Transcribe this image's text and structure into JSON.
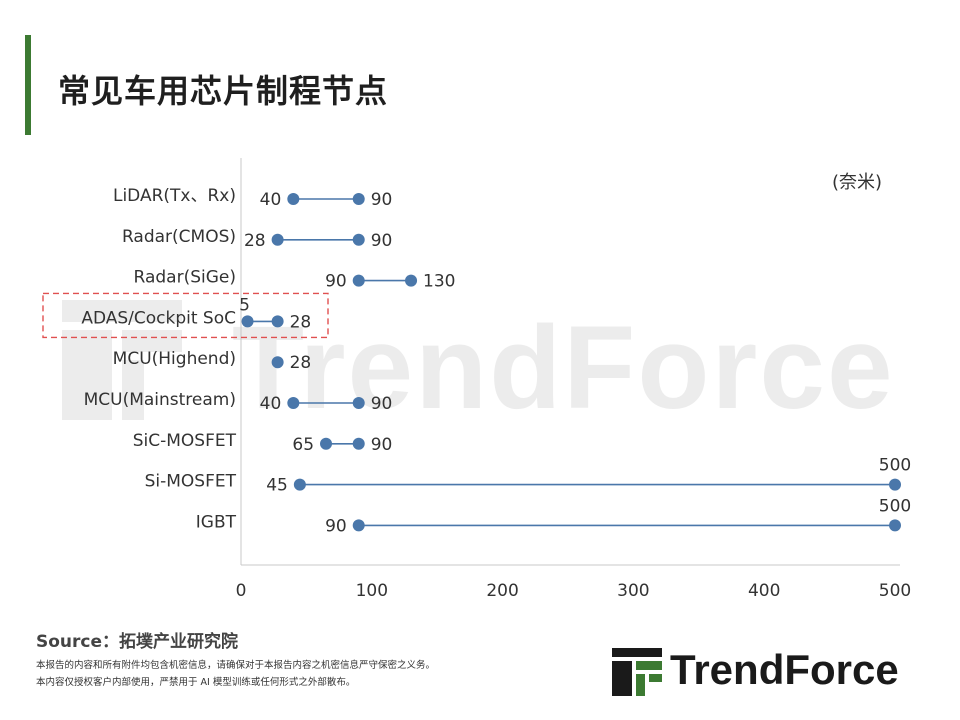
{
  "page": {
    "title": "常见车用芯片制程节点",
    "unit_label": "(奈米)",
    "source": "Source：拓墣产业研究院",
    "disclaimer_1": "本报告的内容和所有附件均包含机密信息，请确保对于本报告内容之机密信息严守保密之义务。",
    "disclaimer_2": "本内容仅授权客户内部使用，严禁用于 AI 模型训练或任何形式之外部散布。",
    "logo_text": "TrendForce",
    "watermark_text": "TrendForce"
  },
  "colors": {
    "accent_bar": "#3c7a32",
    "series": "#4a77aa",
    "highlight_box": "#e05050",
    "logo_green": "#3c7a32"
  },
  "chart_data": {
    "type": "dumbbell",
    "title": "常见车用芯片制程节点",
    "unit": "(奈米)",
    "xlim": [
      0,
      500
    ],
    "xticks": [
      0,
      100,
      200,
      300,
      400,
      500
    ],
    "grid": false,
    "highlighted_category": "ADAS/Cockpit SoC",
    "categories": [
      {
        "label": "LiDAR(Tx、Rx)",
        "min": 40,
        "max": 90
      },
      {
        "label": "Radar(CMOS)",
        "min": 28,
        "max": 90
      },
      {
        "label": "Radar(SiGe)",
        "min": 90,
        "max": 130
      },
      {
        "label": "ADAS/Cockpit SoC",
        "min": 5,
        "max": 28
      },
      {
        "label": "MCU(Highend)",
        "min": 28,
        "max": 28
      },
      {
        "label": "MCU(Mainstream)",
        "min": 40,
        "max": 90
      },
      {
        "label": "SiC-MOSFET",
        "min": 65,
        "max": 90
      },
      {
        "label": "Si-MOSFET",
        "min": 45,
        "max": 500
      },
      {
        "label": "IGBT",
        "min": 90,
        "max": 500
      }
    ]
  }
}
